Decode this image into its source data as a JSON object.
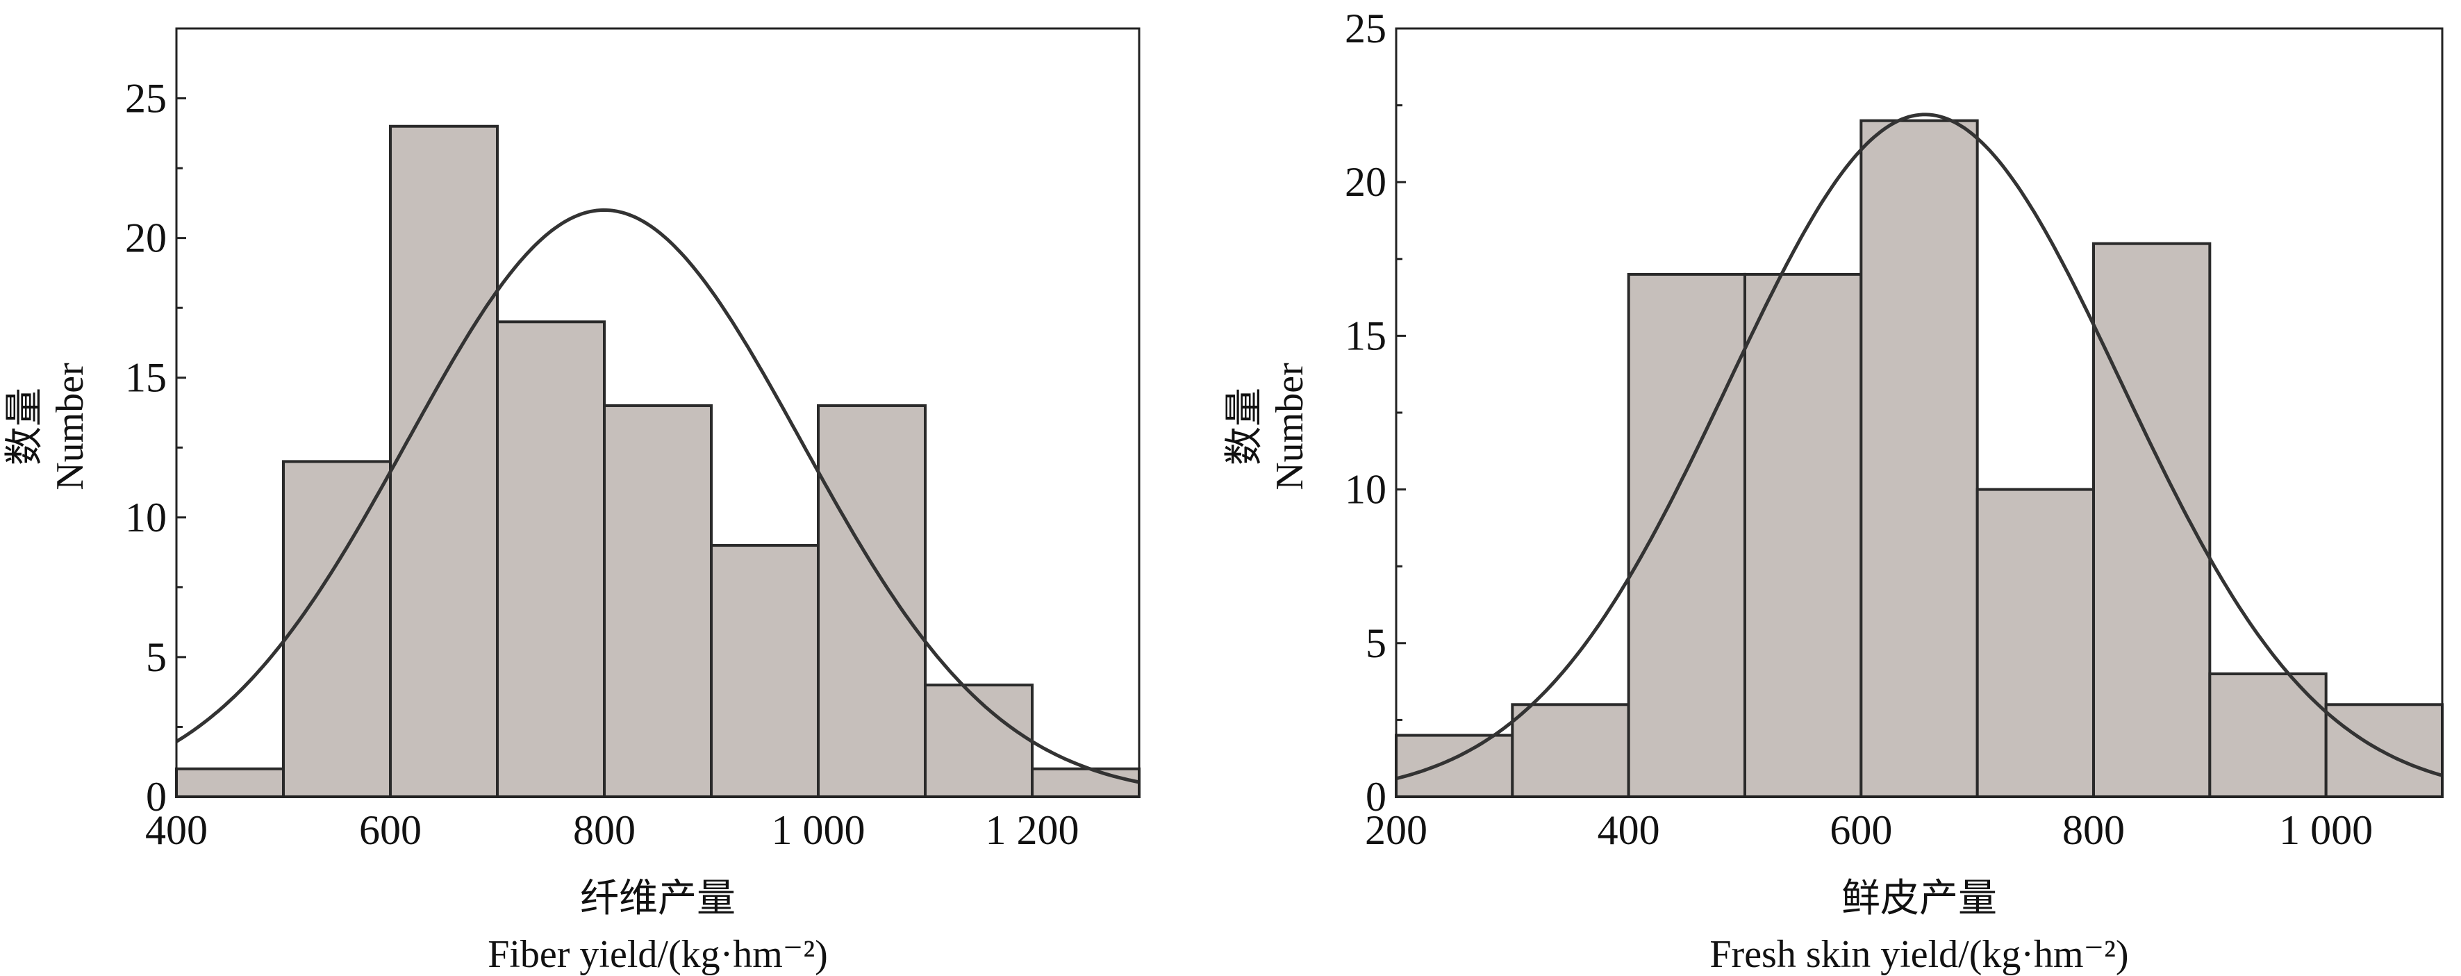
{
  "chart_data": [
    {
      "type": "bar",
      "subtype": "histogram with normal curve",
      "xlabel_cn": "纤维产量",
      "xlabel": "Fiber yield/(kg·hm⁻²)",
      "ylabel_cn": "数量",
      "ylabel": "Number",
      "xlim": [
        400,
        1300
      ],
      "ylim": [
        0,
        27.5
      ],
      "xticks": [
        400,
        600,
        800,
        1000,
        1200
      ],
      "xtick_labels": [
        "400",
        "600",
        "800",
        "1 000",
        "1 200"
      ],
      "yticks": [
        0,
        5,
        10,
        15,
        20,
        25
      ],
      "bins": [
        [
          400,
          500
        ],
        [
          500,
          600
        ],
        [
          600,
          700
        ],
        [
          700,
          800
        ],
        [
          800,
          900
        ],
        [
          900,
          1000
        ],
        [
          1000,
          1100
        ],
        [
          1100,
          1200
        ],
        [
          1200,
          1300
        ]
      ],
      "values": [
        1,
        12,
        24,
        17,
        14,
        9,
        14,
        4,
        1
      ],
      "normal_curve": {
        "mean": 800,
        "sd": 184,
        "peak": 21
      },
      "bar_color": "#c6bfbb",
      "grid": false
    },
    {
      "type": "bar",
      "subtype": "histogram with normal curve",
      "xlabel_cn": "鲜皮产量",
      "xlabel": "Fresh skin yield/(kg·hm⁻²)",
      "ylabel_cn": "数量",
      "ylabel": "Number",
      "xlim": [
        200,
        1100
      ],
      "ylim": [
        0,
        25
      ],
      "xticks": [
        200,
        400,
        600,
        800,
        1000
      ],
      "xtick_labels": [
        "200",
        "400",
        "600",
        "800",
        "1 000"
      ],
      "yticks": [
        0,
        5,
        10,
        15,
        20,
        25
      ],
      "bins": [
        [
          200,
          300
        ],
        [
          300,
          400
        ],
        [
          400,
          500
        ],
        [
          500,
          600
        ],
        [
          600,
          700
        ],
        [
          700,
          800
        ],
        [
          800,
          900
        ],
        [
          900,
          1000
        ],
        [
          1000,
          1100
        ]
      ],
      "values": [
        2,
        3,
        17,
        17,
        22,
        10,
        18,
        4,
        3
      ],
      "normal_curve": {
        "mean": 655,
        "sd": 169,
        "peak": 22.2
      },
      "bar_color": "#c6bfbb",
      "grid": false
    }
  ]
}
